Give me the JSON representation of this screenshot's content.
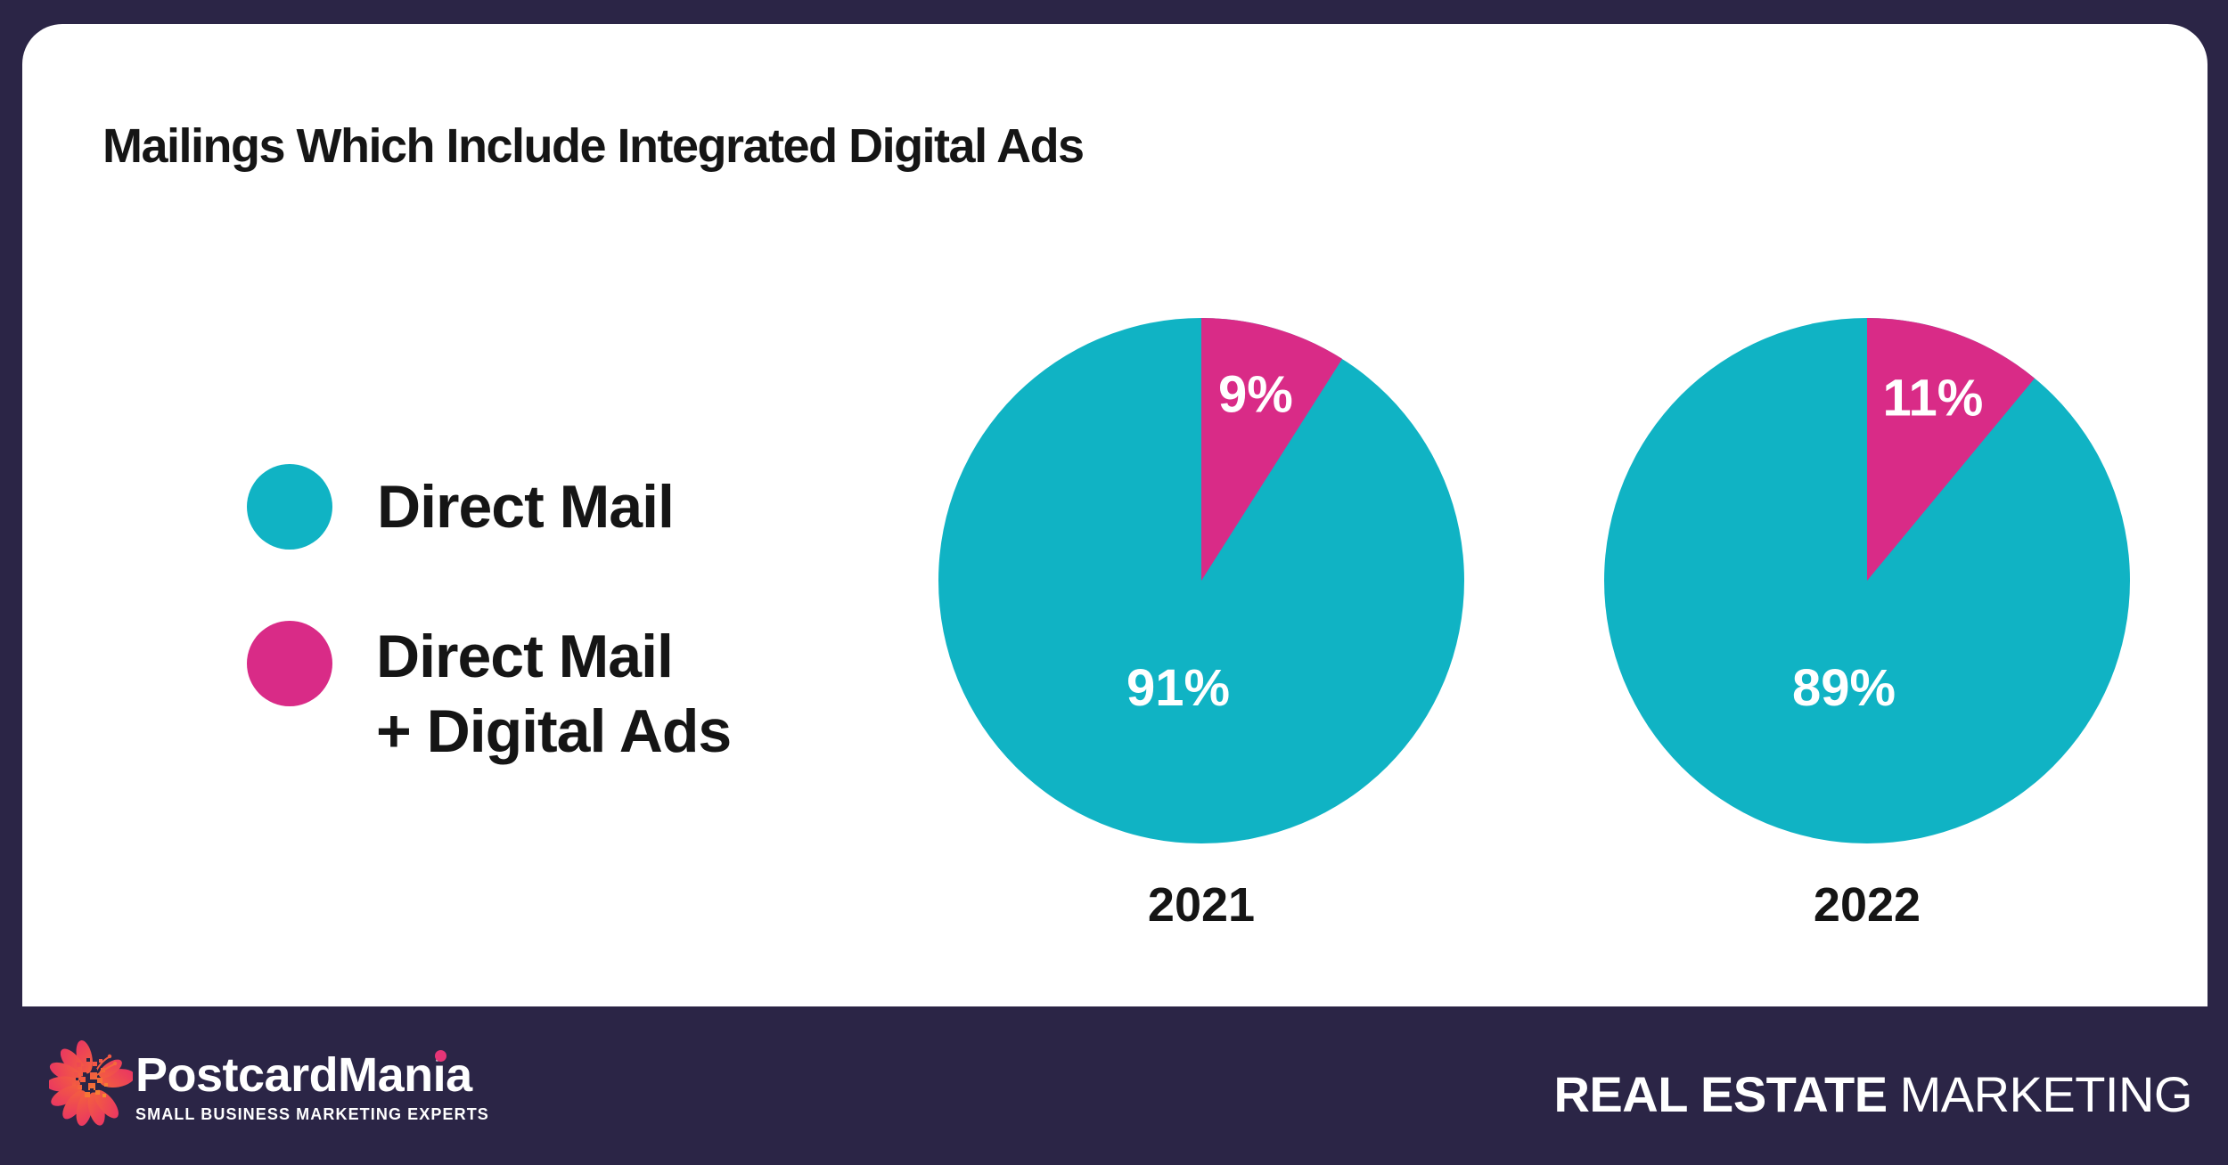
{
  "page": {
    "background_color": "#2b2546",
    "card_color": "#ffffff",
    "title": "Mailings Which Include Integrated Digital Ads"
  },
  "legend": {
    "items": [
      {
        "lines": [
          "Direct Mail"
        ],
        "color": "#10b3c4"
      },
      {
        "lines": [
          "Direct Mail",
          "+ Digital Ads"
        ],
        "color": "#d92b87"
      }
    ]
  },
  "chart_data": [
    {
      "type": "pie",
      "title": "2021",
      "categories": [
        "Direct Mail",
        "Direct Mail + Digital Ads"
      ],
      "values": [
        91,
        9
      ],
      "slice_labels": [
        "91%",
        "9%"
      ],
      "colors": [
        "#10b3c4",
        "#d92b87"
      ],
      "start_angle_deg": 0,
      "direction": "clockwise",
      "minor_slice_position": "top, sweeping right",
      "label_color": "#ffffff"
    },
    {
      "type": "pie",
      "title": "2022",
      "categories": [
        "Direct Mail",
        "Direct Mail + Digital Ads"
      ],
      "values": [
        89,
        11
      ],
      "slice_labels": [
        "89%",
        "11%"
      ],
      "colors": [
        "#10b3c4",
        "#d92b87"
      ],
      "start_angle_deg": 0,
      "direction": "clockwise",
      "minor_slice_position": "top, sweeping right",
      "label_color": "#ffffff"
    }
  ],
  "footer": {
    "brand": {
      "name": "PostcardMania",
      "name_parts": [
        "PostcardMan",
        "ia"
      ],
      "i_dot_color": "#e63577",
      "tagline": "SMALL BUSINESS MARKETING EXPERTS"
    },
    "right_text": {
      "bold": "REAL ESTATE",
      "regular": "MARKETING"
    }
  }
}
